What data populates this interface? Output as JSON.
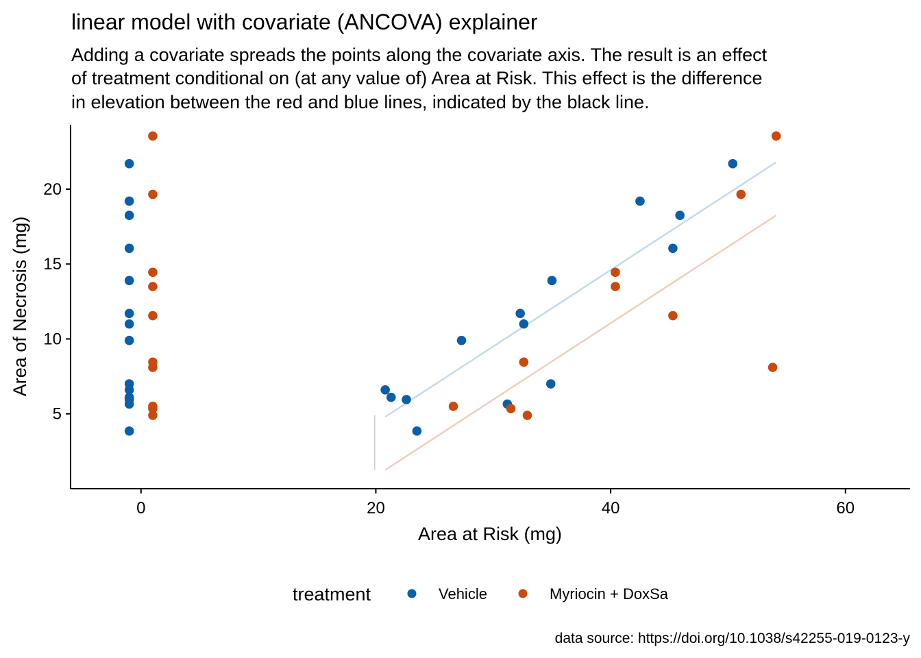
{
  "chart_data": {
    "type": "scatter",
    "title": "linear model with covariate (ANCOVA) explainer",
    "subtitle": [
      "Adding a covariate spreads the points along the covariate axis. The result is an effect",
      "of treatment conditional on (at any value of) Area at Risk. This effect is the difference",
      "in elevation between the red and blue lines, indicated by the black line."
    ],
    "xlabel": "Area at Risk (mg)",
    "ylabel": "Area of Necrosis (mg)",
    "xlim": [
      -6,
      65.5
    ],
    "ylim": [
      0,
      24.3
    ],
    "x_ticks": [
      0,
      20,
      40,
      60
    ],
    "y_ticks": [
      5,
      10,
      15,
      20
    ],
    "grid": false,
    "legend": {
      "title": "treatment",
      "position": "bottom",
      "entries": [
        "Vehicle",
        "Myriocin + DoxSa"
      ]
    },
    "colors": {
      "Vehicle": "#0a5fa8",
      "Myriocin + DoxSa": "#c94a0c",
      "vehicle_line": "#c5d9ee",
      "myriocin_line": "#f2cdbd",
      "effect_line": "#cccccc"
    },
    "series": [
      {
        "name": "Vehicle",
        "strip_x": -1,
        "points": [
          [
            20.8,
            6.6
          ],
          [
            21.3,
            6.1
          ],
          [
            22.6,
            5.95
          ],
          [
            23.5,
            3.85
          ],
          [
            27.3,
            9.9
          ],
          [
            31.2,
            5.65
          ],
          [
            32.3,
            11.7
          ],
          [
            32.6,
            11.0
          ],
          [
            34.9,
            7.0
          ],
          [
            35.0,
            13.9
          ],
          [
            42.5,
            19.2
          ],
          [
            45.3,
            16.05
          ],
          [
            45.9,
            18.25
          ],
          [
            50.4,
            21.7
          ]
        ]
      },
      {
        "name": "Myriocin + DoxSa",
        "strip_x": 1,
        "points": [
          [
            26.6,
            5.5
          ],
          [
            31.5,
            5.35
          ],
          [
            32.6,
            8.45
          ],
          [
            32.9,
            4.9
          ],
          [
            40.4,
            14.45
          ],
          [
            40.4,
            13.5
          ],
          [
            45.3,
            11.55
          ],
          [
            51.1,
            19.65
          ],
          [
            53.8,
            8.1
          ],
          [
            54.1,
            23.55
          ]
        ]
      }
    ],
    "fit_lines": [
      {
        "series": "Vehicle",
        "x": [
          20.8,
          54.1
        ],
        "y": [
          4.8,
          21.8
        ]
      },
      {
        "series": "Myriocin + DoxSa",
        "x": [
          20.8,
          54.1
        ],
        "y": [
          1.25,
          18.25
        ]
      }
    ],
    "effect_segment": {
      "x": 19.9,
      "y": [
        1.25,
        4.9
      ]
    },
    "caption": "data source: https://doi.org/10.1038/s42255-019-0123-y"
  }
}
